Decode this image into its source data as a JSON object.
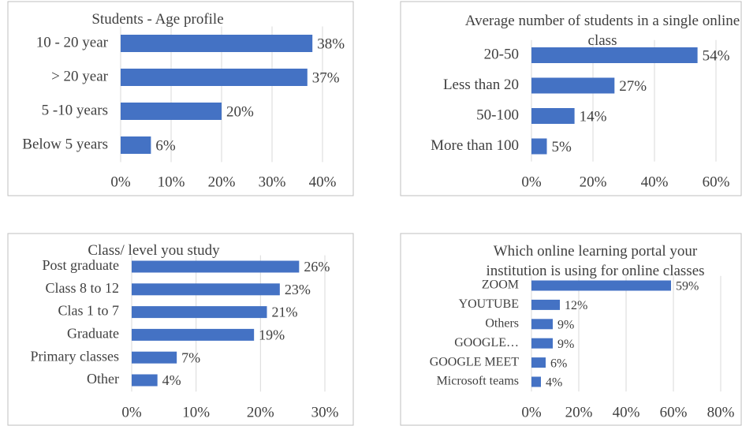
{
  "chart_data": [
    {
      "type": "bar",
      "title": "Students - Age profile",
      "categories": [
        "10 - 20 year",
        "> 20 year",
        "5 -10 years",
        "Below 5 years"
      ],
      "values": [
        38,
        37,
        20,
        6
      ],
      "value_labels": [
        "38%",
        "37%",
        "20%",
        "6%"
      ],
      "color": "#4472c4",
      "xlim": [
        0,
        40
      ],
      "xticks": [
        {
          "value": 0,
          "label": "0%"
        },
        {
          "value": 10,
          "label": "10%"
        },
        {
          "value": 20,
          "label": "20%"
        },
        {
          "value": 30,
          "label": "30%"
        },
        {
          "value": 40,
          "label": "40%"
        }
      ],
      "grid": true
    },
    {
      "type": "bar",
      "title": "Average number of students in a single online class",
      "categories": [
        "20-50",
        "Less than 20",
        "50-100",
        "More than 100"
      ],
      "values": [
        54,
        27,
        14,
        5
      ],
      "value_labels": [
        "54%",
        "27%",
        "14%",
        "5%"
      ],
      "color": "#4472c4",
      "xlim": [
        0,
        60
      ],
      "xticks": [
        {
          "value": 0,
          "label": "0%"
        },
        {
          "value": 20,
          "label": "20%"
        },
        {
          "value": 40,
          "label": "40%"
        },
        {
          "value": 60,
          "label": "60%"
        }
      ],
      "grid": true
    },
    {
      "type": "bar",
      "title": "Class/ level you study",
      "categories": [
        "Post graduate",
        "Class 8 to 12",
        "Clas 1 to 7",
        "Graduate",
        "Primary classes",
        "Other"
      ],
      "values": [
        26,
        23,
        21,
        19,
        7,
        4
      ],
      "value_labels": [
        "26%",
        "23%",
        "21%",
        "19%",
        "7%",
        "4%"
      ],
      "color": "#4472c4",
      "xlim": [
        0,
        30
      ],
      "xticks": [
        {
          "value": 0,
          "label": "0%"
        },
        {
          "value": 10,
          "label": "10%"
        },
        {
          "value": 20,
          "label": "20%"
        },
        {
          "value": 30,
          "label": "30%"
        }
      ],
      "grid": true
    },
    {
      "type": "bar",
      "title": "Which online learning portal your institution is using for online classes",
      "categories": [
        "ZOOM",
        "YOUTUBE",
        "Others",
        "GOOGLE…",
        "GOOGLE MEET",
        "Microsoft teams"
      ],
      "values": [
        59,
        12,
        9,
        9,
        6,
        4
      ],
      "value_labels": [
        "59%",
        "12%",
        "9%",
        "9%",
        "6%",
        "4%"
      ],
      "color": "#4472c4",
      "xlim": [
        0,
        80
      ],
      "xticks": [
        {
          "value": 0,
          "label": "0%"
        },
        {
          "value": 20,
          "label": "20%"
        },
        {
          "value": 40,
          "label": "40%"
        },
        {
          "value": 60,
          "label": "60%"
        },
        {
          "value": 80,
          "label": "80%"
        }
      ],
      "grid": true
    }
  ]
}
